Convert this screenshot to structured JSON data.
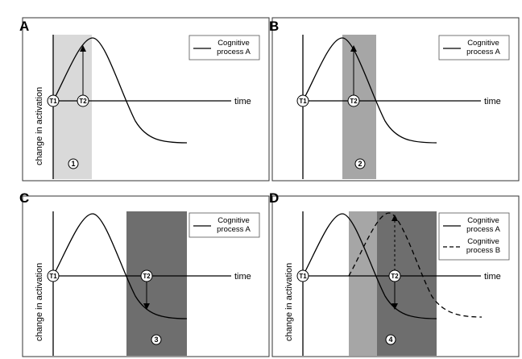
{
  "panels": [
    {
      "letter": "A",
      "ylabel": "change in activation",
      "xlabel": "time",
      "marker_t1": "T1",
      "marker_t2": "T2",
      "window_number": "1",
      "window_shade": "#d9d9d9",
      "legend": [
        {
          "line1": "Cognitive",
          "line2": "process A",
          "style": "solid"
        }
      ],
      "arrow": "up"
    },
    {
      "letter": "B",
      "ylabel": "change in activation",
      "xlabel": "time",
      "marker_t1": "T1",
      "marker_t2": "T2",
      "window_number": "2",
      "window_shade": "#a6a6a6",
      "legend": [
        {
          "line1": "Cognitive",
          "line2": "process A",
          "style": "solid"
        }
      ],
      "arrow": "up"
    },
    {
      "letter": "C",
      "ylabel": "change in activation",
      "xlabel": "time",
      "marker_t1": "T1",
      "marker_t2": "T2",
      "window_number": "3",
      "window_shade": "#6e6e6e",
      "legend": [
        {
          "line1": "Cognitive",
          "line2": "process A",
          "style": "solid"
        }
      ],
      "arrow": "down"
    },
    {
      "letter": "D",
      "ylabel": "change in activation",
      "xlabel": "time",
      "marker_t1": "T1",
      "marker_t2": "T2",
      "window_number": "4",
      "window_shade": "#6e6e6e",
      "window_shade_light": "#a6a6a6",
      "legend": [
        {
          "line1": "Cognitive",
          "line2": "process A",
          "style": "solid"
        },
        {
          "line1": "Cognitive",
          "line2": "process B",
          "style": "dashed"
        }
      ],
      "arrow": "both"
    }
  ]
}
